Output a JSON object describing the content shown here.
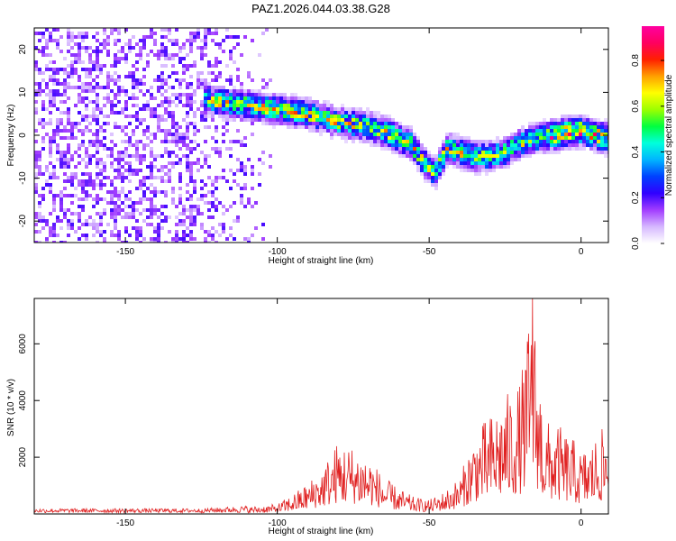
{
  "title": "PAZ1.2026.044.03.38.G28",
  "chart_data": [
    {
      "type": "heatmap",
      "xlabel": "Height of straight line (km)",
      "ylabel": "Frequency (Hz)",
      "xlim": [
        -180,
        9
      ],
      "ylim": [
        -25,
        25
      ],
      "xticks": [
        -150,
        -100,
        -50,
        0
      ],
      "xtick_labels": [
        "-150",
        "-100",
        "-50",
        "0"
      ],
      "yticks": [
        -20,
        -10,
        0,
        10,
        20
      ],
      "ytick_labels": [
        "-20",
        "-10",
        "0",
        "10",
        "20"
      ],
      "noise_region_km": [
        -180,
        -100
      ],
      "ridge": {
        "x": [
          -122,
          -110,
          -100,
          -90,
          -80,
          -70,
          -62,
          -56,
          -52,
          -48,
          -44,
          -40,
          -35,
          -30,
          -25,
          -20,
          -15,
          -10,
          -5,
          0,
          5,
          9
        ],
        "y": [
          8,
          7,
          6,
          5,
          3,
          2,
          0,
          -2,
          -6,
          -9,
          -3,
          -4,
          -5,
          -5,
          -4,
          -2,
          -1,
          0,
          0.5,
          1,
          0,
          -1
        ]
      },
      "colorbar": {
        "label": "Normalized spectral amplitude",
        "range": [
          0,
          0.95
        ],
        "ticks": [
          0,
          0.2,
          0.4,
          0.6,
          0.8
        ],
        "tick_labels": [
          "0.0",
          "0.2",
          "0.4",
          "0.6",
          "0.8"
        ],
        "colors": [
          "#ffffff",
          "#d6b8ff",
          "#a23dff",
          "#3000ff",
          "#0040ff",
          "#00b4ff",
          "#00ffdc",
          "#00ff40",
          "#9cff00",
          "#ffff00",
          "#ffa000",
          "#ff2000",
          "#ff0060",
          "#ff00a0"
        ]
      }
    },
    {
      "type": "line",
      "xlabel": "Height of straight line (km)",
      "ylabel": "SNR (10 * v/v)",
      "xlim": [
        -180,
        9
      ],
      "ylim": [
        0,
        7600
      ],
      "xticks": [
        -150,
        -100,
        -50,
        0
      ],
      "xtick_labels": [
        "-150",
        "-100",
        "-50",
        "0"
      ],
      "yticks": [
        2000,
        4000,
        6000
      ],
      "ytick_labels": [
        "2000",
        "4000",
        "6000"
      ],
      "line_color": "#e02020",
      "envelope": {
        "x": [
          -180,
          -125,
          -110,
          -100,
          -95,
          -90,
          -85,
          -80,
          -75,
          -70,
          -65,
          -60,
          -55,
          -50,
          -45,
          -40,
          -35,
          -30,
          -25,
          -20,
          -16,
          -12,
          -8,
          -5,
          -2,
          0,
          3,
          6,
          9
        ],
        "y": [
          150,
          150,
          250,
          350,
          700,
          1100,
          1700,
          2600,
          2400,
          2100,
          1300,
          900,
          600,
          500,
          800,
          1300,
          2900,
          3500,
          4200,
          4700,
          7600,
          3300,
          3200,
          2900,
          2600,
          2200,
          2500,
          2900,
          3200
        ]
      }
    }
  ]
}
